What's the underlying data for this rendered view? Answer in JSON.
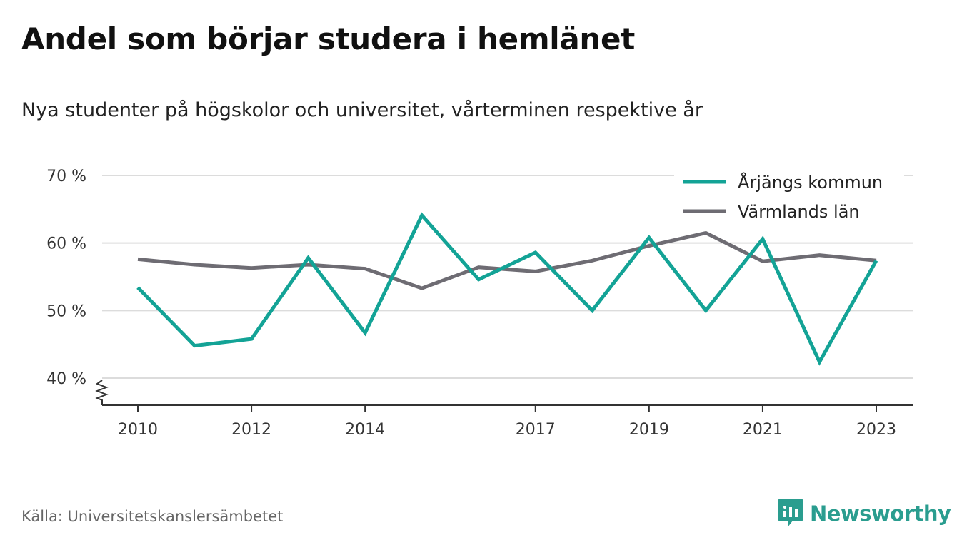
{
  "title": "Andel som börjar studera i hemlänet",
  "subtitle": "Nya studenter på högskolor och universitet, vårterminen respektive år",
  "source": "Källa: Universitetskanslersämbetet",
  "brand": {
    "name": "Newsworthy",
    "icon": "newsworthy-logo-icon",
    "color": "#2a9d8f"
  },
  "chart_data": {
    "type": "line",
    "x": [
      2010,
      2011,
      2012,
      2013,
      2014,
      2015,
      2016,
      2017,
      2018,
      2019,
      2020,
      2021,
      2022,
      2023
    ],
    "x_tick_labels": [
      "2010",
      "2012",
      "2014",
      "2017",
      "2019",
      "2021",
      "2023"
    ],
    "y_tick_labels": [
      "40 %",
      "50 %",
      "60 %",
      "70 %"
    ],
    "y_ticks": [
      40,
      50,
      60,
      70
    ],
    "ylim": [
      36,
      70
    ],
    "y_axis_break": true,
    "grid": true,
    "legend_position": "top-right",
    "series": [
      {
        "name": "Årjängs kommun",
        "color": "#13a396",
        "values": [
          53.4,
          44.8,
          45.8,
          57.8,
          46.7,
          64.1,
          54.6,
          58.6,
          50.0,
          60.8,
          50.0,
          60.6,
          42.4,
          57.4
        ]
      },
      {
        "name": "Värmlands län",
        "color": "#6e6c73",
        "values": [
          57.6,
          56.8,
          56.3,
          56.8,
          56.2,
          53.3,
          56.4,
          55.8,
          57.4,
          59.6,
          61.5,
          57.3,
          58.2,
          57.4
        ]
      }
    ]
  }
}
